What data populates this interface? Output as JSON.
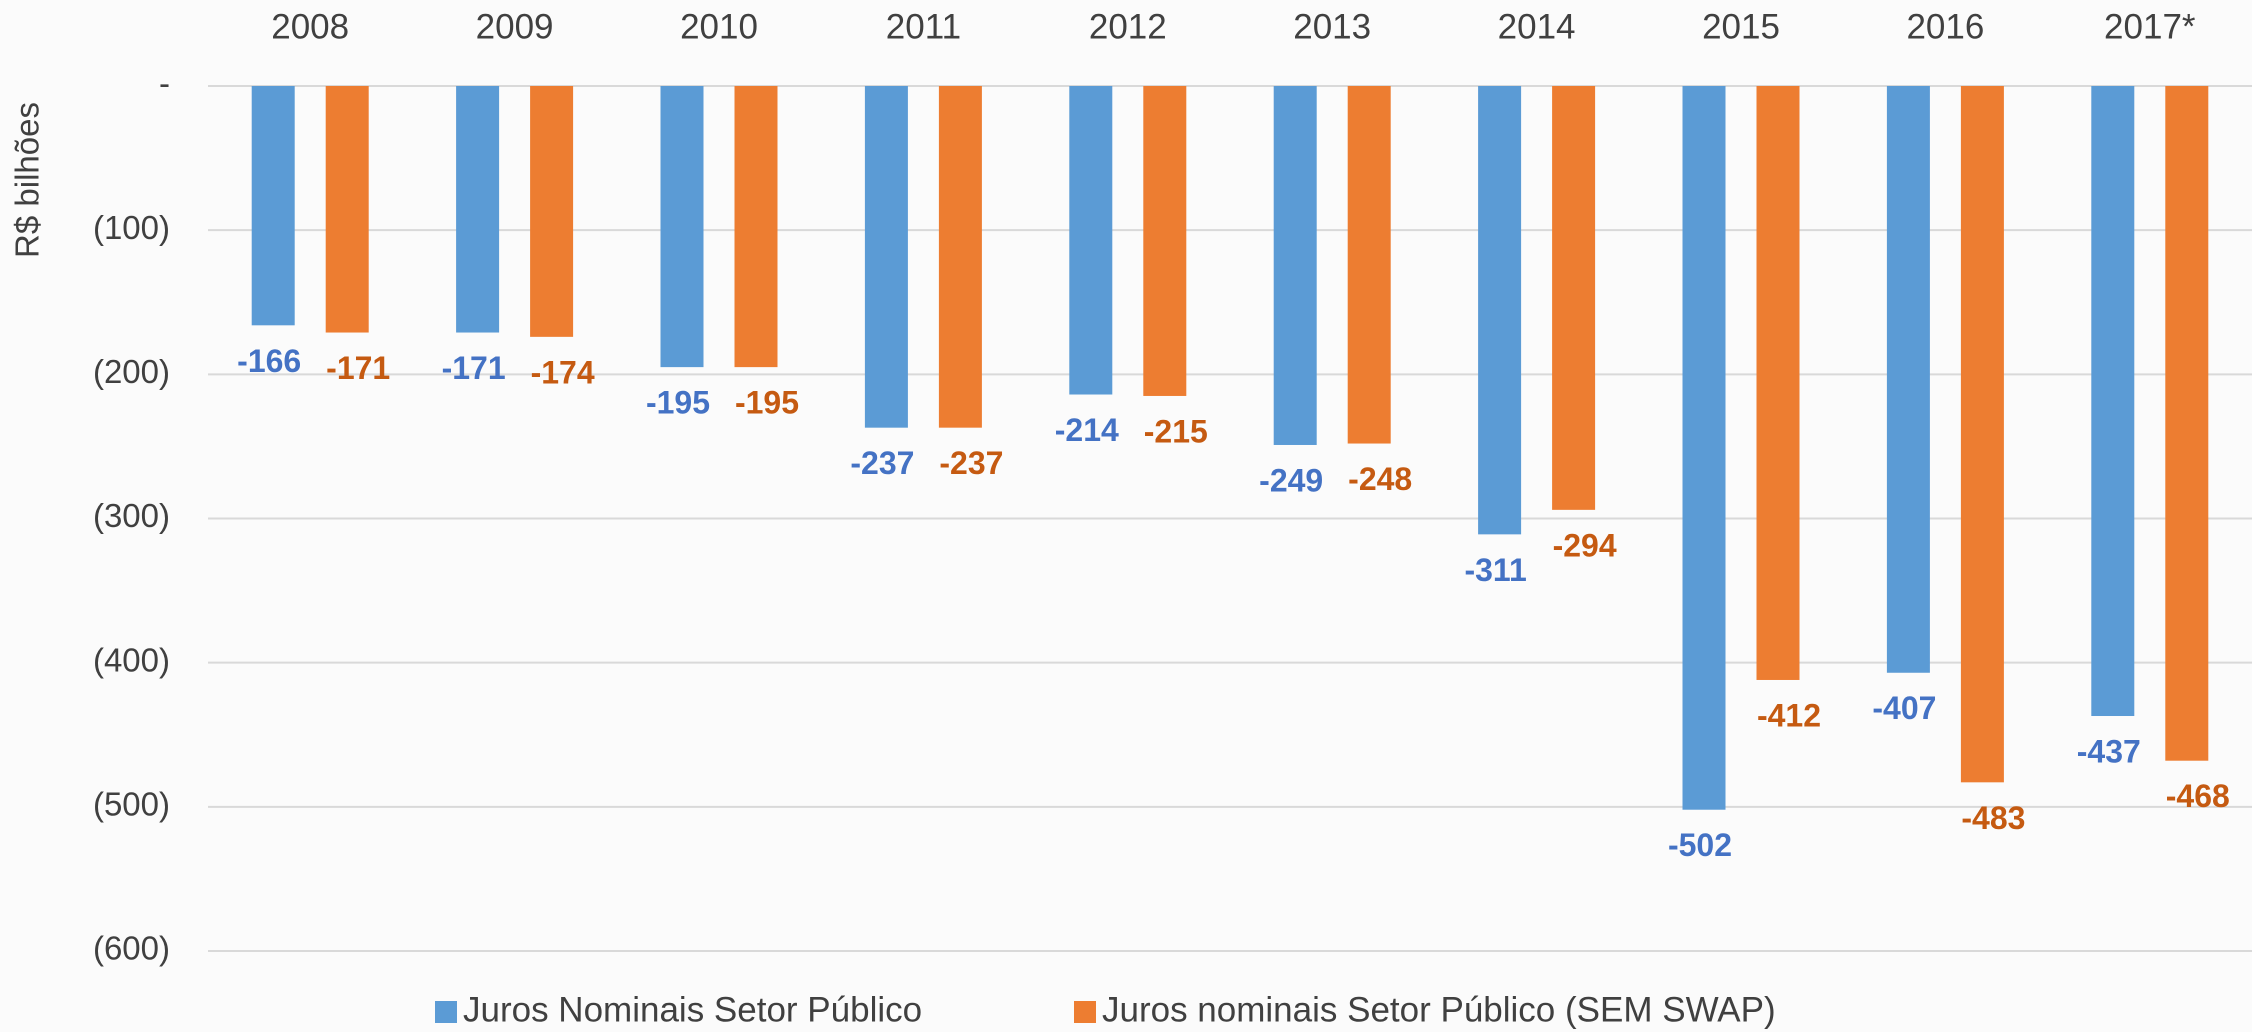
{
  "chart_data": {
    "type": "bar",
    "y_label": "R$ bilhões",
    "categories": [
      "2008",
      "2009",
      "2010",
      "2011",
      "2012",
      "2013",
      "2014",
      "2015",
      "2016",
      "2017*"
    ],
    "series": [
      {
        "name": "Juros Nominais Setor Público",
        "color": "#5b9bd5",
        "label_color": "#4472c4",
        "values": [
          -166,
          -171,
          -195,
          -237,
          -214,
          -249,
          -311,
          -502,
          -407,
          -437
        ]
      },
      {
        "name": "Juros nominais Setor Público (SEM SWAP)",
        "color": "#ed7d31",
        "label_color": "#c55a11",
        "values": [
          -171,
          -174,
          -195,
          -237,
          -215,
          -248,
          -294,
          -412,
          -483,
          -468
        ]
      }
    ],
    "ylim": [
      -600,
      0
    ],
    "yticks": [
      {
        "value": 0,
        "label": "-"
      },
      {
        "value": -100,
        "label": "(100)"
      },
      {
        "value": -200,
        "label": "(200)"
      },
      {
        "value": -300,
        "label": "(300)"
      },
      {
        "value": -400,
        "label": "(400)"
      },
      {
        "value": -500,
        "label": "(500)"
      },
      {
        "value": -600,
        "label": "(600)"
      }
    ],
    "grid": true,
    "legend": "bottom"
  }
}
